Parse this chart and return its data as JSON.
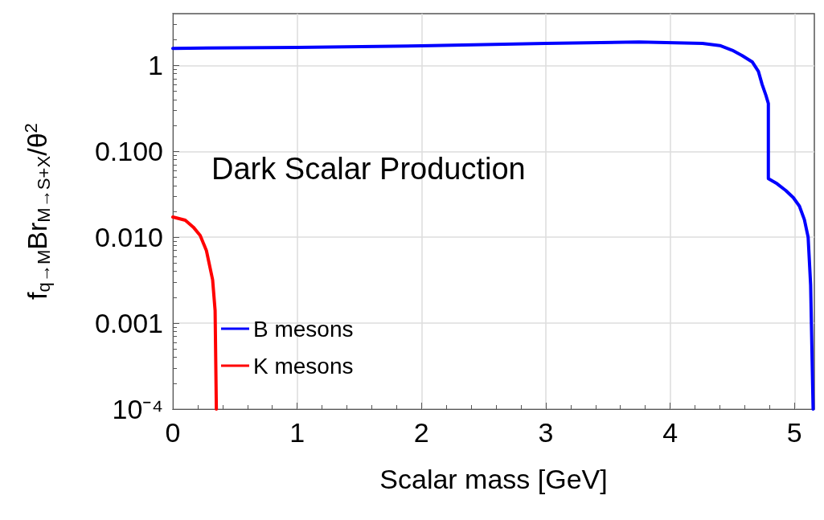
{
  "chart_data": {
    "type": "line",
    "title": "Dark Scalar Production",
    "xlabel": "Scalar mass [GeV]",
    "ylabel": "f$_{q→M}$Br$_{M→S+X}$/θ$^{2}$",
    "log": "y",
    "grid": true,
    "legend": "bottom left",
    "line_style": "solid",
    "marker": "none",
    "xlim": [
      0,
      5.16
    ],
    "xticks": [
      0,
      1,
      2,
      3,
      4,
      5
    ],
    "ylim": [
      0.0001,
      4
    ],
    "yticks": [
      {
        "value": 0.0001,
        "label": "10⁻⁴"
      },
      {
        "value": 0.001,
        "label": "0.001"
      },
      {
        "value": 0.01,
        "label": "0.010"
      },
      {
        "value": 0.1,
        "label": "0.100"
      },
      1
    ],
    "series": [
      {
        "name": "B mesons",
        "color": "#0000ff",
        "x": [
          0,
          1,
          2,
          3,
          3.75,
          4.26,
          4.4,
          4.5,
          4.58,
          4.66,
          4.71,
          4.74,
          4.77,
          4.79,
          4.79,
          4.86,
          4.93,
          4.99,
          5.04,
          5.08,
          5.11,
          5.13,
          5.15
        ],
        "values": [
          1.58,
          1.62,
          1.69,
          1.8,
          1.87,
          1.8,
          1.7,
          1.5,
          1.3,
          1.1,
          0.85,
          0.6,
          0.45,
          0.36,
          0.048,
          0.042,
          0.035,
          0.029,
          0.023,
          0.016,
          0.01,
          0.0028,
          0.0001
        ]
      },
      {
        "name": "K mesons",
        "color": "#ff0000",
        "x": [
          0,
          0.1,
          0.165,
          0.22,
          0.27,
          0.32,
          0.34,
          0.35
        ],
        "values": [
          0.0172,
          0.0158,
          0.0131,
          0.0105,
          0.007,
          0.0032,
          0.0014,
          0.0001
        ]
      }
    ]
  }
}
